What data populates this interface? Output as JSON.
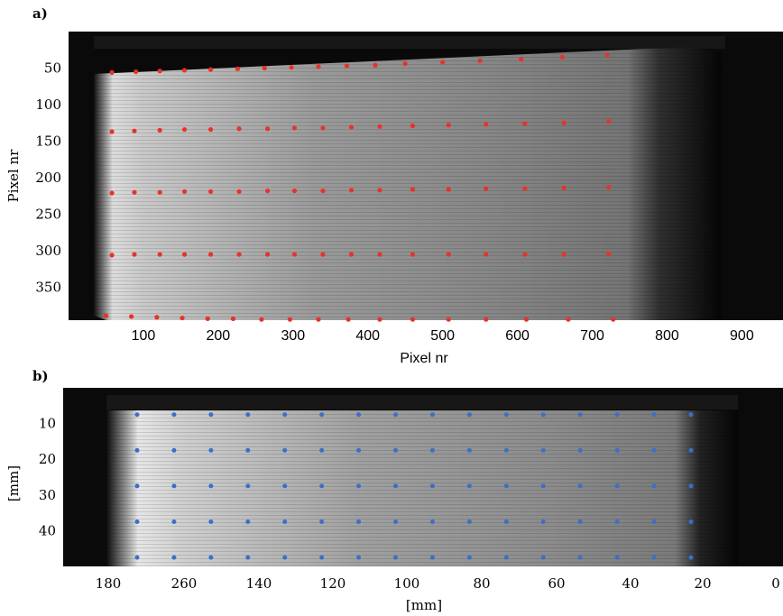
{
  "chart_data": [
    {
      "panel_label": "a)",
      "type": "scatter",
      "image_background": "grayscale camera image",
      "xlabel": "Pixel nr",
      "ylabel": "Pixel nr",
      "xlim": [
        0,
        955
      ],
      "ylim": [
        395,
        0
      ],
      "x_ticks": [
        "100",
        "200",
        "300",
        "400",
        "500",
        "600",
        "700",
        "800",
        "900"
      ],
      "x_tick_values": [
        100,
        200,
        300,
        400,
        500,
        600,
        700,
        800,
        900
      ],
      "y_ticks": [
        "50",
        "100",
        "150",
        "200",
        "250",
        "300",
        "350"
      ],
      "y_tick_values": [
        50,
        100,
        150,
        200,
        250,
        300,
        350
      ],
      "marker_color": "#e8322a",
      "rows": [
        {
          "x": [
            58,
            90,
            122,
            155,
            190,
            226,
            262,
            298,
            334,
            372,
            410,
            450,
            500,
            550,
            605,
            660,
            720
          ],
          "y": [
            56,
            55,
            54,
            53,
            52,
            51,
            50,
            49,
            48,
            47,
            46,
            44,
            42,
            40,
            38,
            35,
            32
          ]
        },
        {
          "x": [
            58,
            88,
            122,
            155,
            190,
            228,
            266,
            302,
            340,
            378,
            416,
            460,
            508,
            558,
            610,
            662,
            722
          ],
          "y": [
            137,
            136,
            135,
            134,
            134,
            133,
            133,
            132,
            132,
            131,
            130,
            129,
            128,
            127,
            126,
            125,
            123
          ]
        },
        {
          "x": [
            58,
            88,
            122,
            155,
            190,
            228,
            266,
            302,
            340,
            378,
            416,
            460,
            508,
            558,
            610,
            662,
            722
          ],
          "y": [
            221,
            220,
            220,
            219,
            219,
            219,
            218,
            218,
            218,
            217,
            217,
            216,
            216,
            215,
            215,
            214,
            213
          ]
        },
        {
          "x": [
            58,
            88,
            122,
            155,
            190,
            228,
            266,
            302,
            340,
            378,
            416,
            460,
            508,
            558,
            610,
            662,
            722
          ],
          "y": [
            306,
            305,
            305,
            305,
            305,
            305,
            305,
            305,
            305,
            305,
            305,
            305,
            305,
            305,
            305,
            305,
            304
          ]
        },
        {
          "x": [
            50,
            84,
            118,
            152,
            186,
            220,
            258,
            296,
            334,
            374,
            416,
            460,
            508,
            558,
            612,
            668,
            728
          ],
          "y": [
            389,
            390,
            391,
            392,
            393,
            393,
            394,
            394,
            394,
            394,
            394,
            394,
            394,
            394,
            394,
            394,
            394
          ]
        }
      ]
    },
    {
      "panel_label": "b)",
      "type": "scatter",
      "image_background": "rectified grayscale camera image",
      "xlabel": "[mm]",
      "ylabel": "[mm]",
      "x_ticks": [
        "180",
        "260",
        "140",
        "120",
        "100",
        "80",
        "60",
        "40",
        "20",
        "0"
      ],
      "y_ticks": [
        "10",
        "20",
        "30",
        "40"
      ],
      "y_tick_values": [
        10,
        20,
        30,
        40
      ],
      "ylim": [
        50,
        0
      ],
      "marker_color": "#3d6fc4",
      "grid_points": {
        "x_count": 16,
        "y_mm": [
          7.5,
          17.5,
          27.5,
          37.5,
          47.5
        ]
      }
    }
  ]
}
